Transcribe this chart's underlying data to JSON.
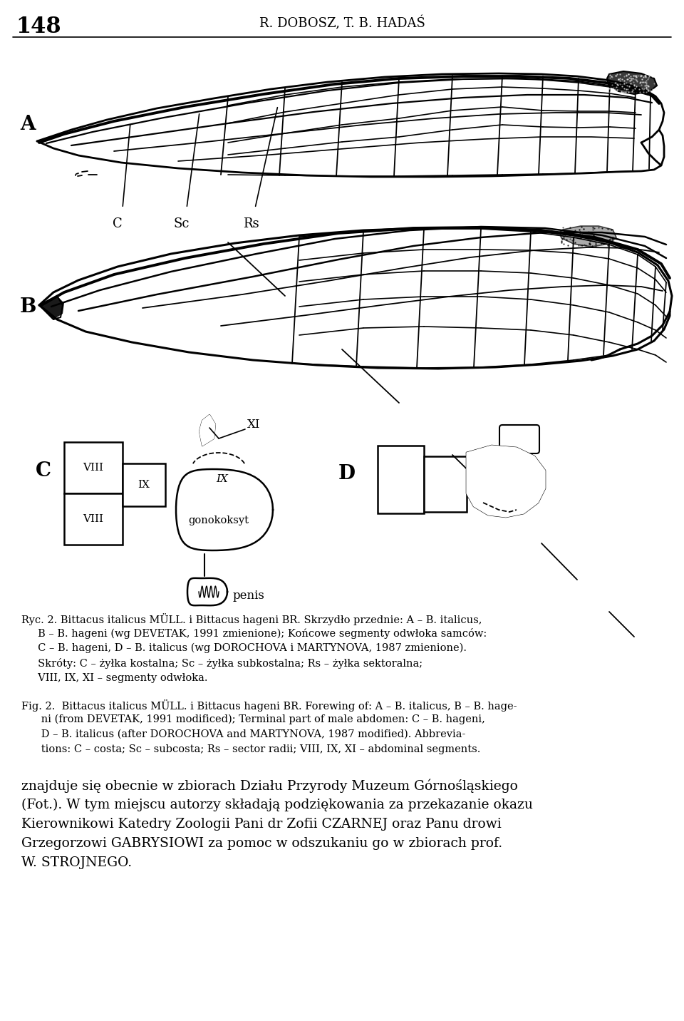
{
  "page_number": "148",
  "header": "R. DOBOSZ, T. B. HADAŚ",
  "bg_color": "#ffffff",
  "label_A": "A",
  "label_B": "B",
  "label_C": "C",
  "label_D": "D",
  "vein_C": "C",
  "vein_Sc": "Sc",
  "vein_Rs": "Rs",
  "label_VIII": "VIII",
  "label_IX": "IX",
  "label_XI": "XI",
  "label_gonokoksyt": "gonokoksyt",
  "label_penis": "penis",
  "caption_polish": "Ryc. 2. Bittacus italicus MÜLL. i Bittacus hageni BR. Skrzydło przednie: A – B. italicus,\n     B – B. hageni (wg DEVETAK, 1991 zmienione); Końcowe segmenty odwłoka samców:\n     C – B. hageni, D – B. italicus (wg DOROCHOVA i MARTYNOVA, 1987 zmienione).\n     Skróty: C – żyłka kostalna; Sc – żyłka subkostalna; Rs – żyłka sektoralna;\n     VIII, IX, XI – segmenty odwłoka.",
  "caption_english": "Fig. 2.  Bittacus italicus MÜLL. i Bittacus hageni BR. Forewing of: A – B. italicus, B – B. hage-\n      ni (from DEVETAK, 1991 modificed); Terminal part of male abdomen: C – B. hageni,\n      D – B. italicus (after DOROCHOVA and MARTYNOVA, 1987 modified). Abbrevia-\n      tions: C – costa; Sc – subcosta; Rs – sector radii; VIII, IX, XI – abdominal segments.",
  "bottom_text": "znajduje się obecnie w zbiorach Działu Przyrody Muzeum Górnośląskiego\n(Fot.). W tym miejscu autorzy składają podziękowania za przekazanie okazu\nKierownikowi Katedry Zoologii Pani dr Zofii CZARNEJ oraz Panu drowi\nGrzegorzowi GABRYSIOWI za pomoc w odszukaniu go w zbiorach prof.\nW. STROJNEGO."
}
